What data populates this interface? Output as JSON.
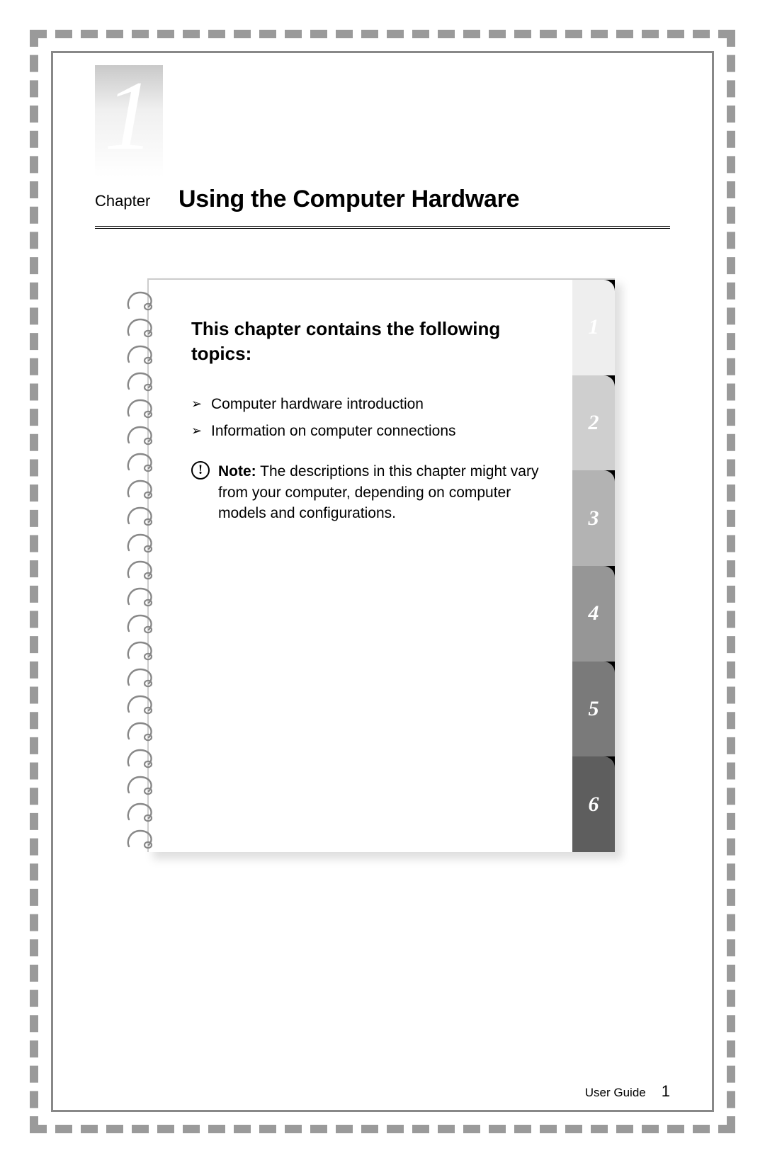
{
  "chapter": {
    "number": "1",
    "label": "Chapter",
    "title": "Using the Computer Hardware"
  },
  "notebook": {
    "topics_heading": "This chapter contains the following topics:",
    "topics": [
      "Computer hardware introduction",
      "Information on computer connections"
    ],
    "note": {
      "label": "Note:",
      "text": " The descriptions in this chapter might vary from your computer, depending on computer models and configurations."
    },
    "tabs": [
      {
        "label": "1",
        "bg": "#eeeeee",
        "fg": "#ffffff"
      },
      {
        "label": "2",
        "bg": "#cfcfcf",
        "fg": "#ffffff"
      },
      {
        "label": "3",
        "bg": "#b3b3b3",
        "fg": "#ffffff"
      },
      {
        "label": "4",
        "bg": "#969696",
        "fg": "#ffffff"
      },
      {
        "label": "5",
        "bg": "#7a7a7a",
        "fg": "#ffffff"
      },
      {
        "label": "6",
        "bg": "#5e5e5e",
        "fg": "#ffffff"
      }
    ],
    "spiral_count": 21
  },
  "footer": {
    "doc_title": "User Guide",
    "page_number": "1"
  },
  "style": {
    "border_dash_color": "#9a9a9a",
    "chapter_gradient_top": "#c9c9c9",
    "chapter_gradient_bottom": "#ffffff"
  }
}
